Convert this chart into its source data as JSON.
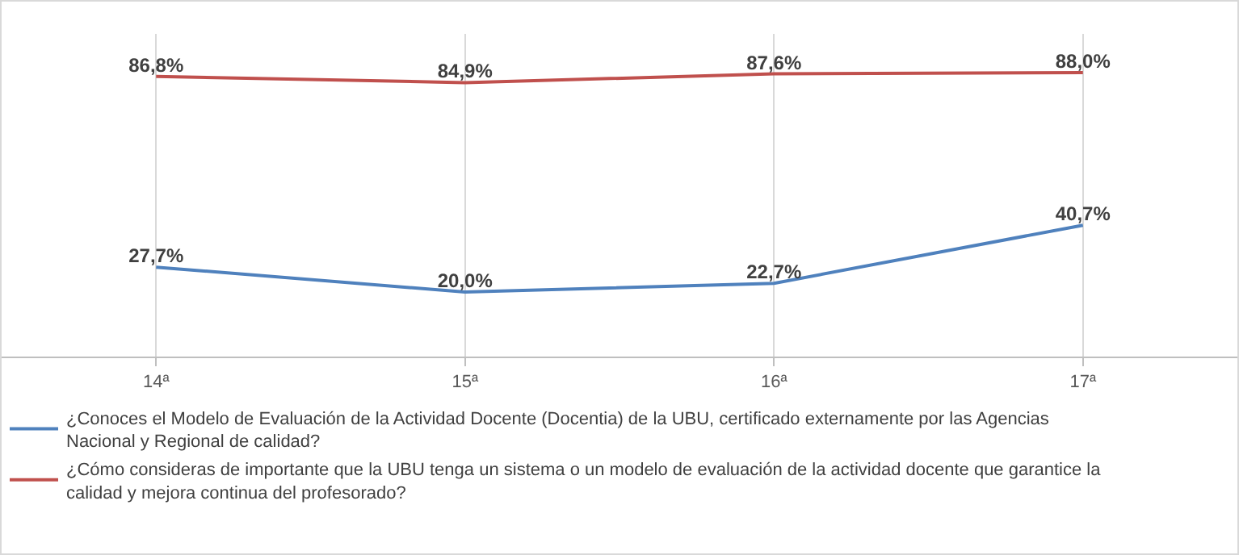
{
  "chart_data": {
    "type": "line",
    "categories": [
      "14ª",
      "15ª",
      "16ª",
      "17ª"
    ],
    "series": [
      {
        "name": "¿Conoces el Modelo de Evaluación de la Actividad Docente (Docentia) de la UBU, certificado externamente por las Agencias Nacional y Regional de calidad?",
        "color": "#4f81bd",
        "values": [
          27.7,
          20.0,
          22.7,
          40.7
        ],
        "value_labels": [
          "27,7%",
          "20,0%",
          "22,7%",
          "40,7%"
        ]
      },
      {
        "name": "¿Cómo consideras de importante que la UBU tenga un sistema o un modelo de evaluación de la actividad docente que garantice la calidad y mejora continua del profesorado?",
        "color": "#c0504d",
        "values": [
          86.8,
          84.9,
          87.6,
          88.0
        ],
        "value_labels": [
          "86,8%",
          "84,9%",
          "87,6%",
          "88,0%"
        ]
      }
    ],
    "ylim": [
      0,
      100
    ],
    "grid": "x",
    "legend": "bottom",
    "marker": "none",
    "line_style": "solid"
  }
}
